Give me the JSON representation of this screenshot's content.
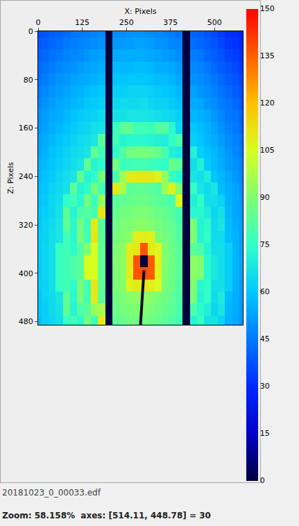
{
  "chart_data": {
    "type": "heatmap",
    "x_label": "X: Pixels",
    "y_label": "Z: Pixels",
    "xlim": [
      0,
      580
    ],
    "ylim": [
      485,
      0
    ],
    "xticks": [
      0,
      125,
      250,
      375,
      500
    ],
    "yticks": [
      0,
      80,
      160,
      240,
      320,
      400,
      480
    ],
    "x": [
      0,
      20,
      40,
      60,
      80,
      100,
      120,
      140,
      160,
      180,
      200,
      220,
      240,
      260,
      280,
      300,
      320,
      340,
      360,
      380,
      400,
      420,
      440,
      460,
      480,
      500,
      520,
      540,
      560,
      580
    ],
    "y": [
      0,
      20,
      40,
      60,
      80,
      100,
      120,
      140,
      160,
      180,
      200,
      220,
      240,
      260,
      280,
      300,
      320,
      340,
      360,
      380,
      400,
      420,
      440,
      460,
      480
    ],
    "cells": [
      [
        37,
        38,
        40,
        41,
        42,
        44,
        45,
        46,
        47,
        48,
        0,
        49,
        49,
        50,
        50,
        50,
        49,
        48,
        47,
        46,
        44,
        0,
        41,
        40,
        38,
        36,
        33,
        31,
        30,
        27
      ],
      [
        39,
        40,
        42,
        43,
        45,
        46,
        47,
        48,
        49,
        50,
        0,
        51,
        52,
        52,
        53,
        53,
        52,
        50,
        50,
        48,
        47,
        0,
        43,
        42,
        40,
        38,
        36,
        33,
        32,
        29
      ],
      [
        41,
        42,
        44,
        45,
        47,
        48,
        49,
        51,
        52,
        53,
        0,
        54,
        55,
        55,
        55,
        55,
        54,
        53,
        52,
        51,
        49,
        0,
        46,
        45,
        42,
        40,
        38,
        35,
        34,
        31
      ],
      [
        43,
        44,
        46,
        48,
        49,
        50,
        52,
        53,
        54,
        55,
        0,
        57,
        57,
        57,
        58,
        58,
        57,
        55,
        55,
        54,
        52,
        0,
        48,
        47,
        45,
        42,
        40,
        38,
        36,
        33
      ],
      [
        44,
        46,
        48,
        50,
        51,
        53,
        54,
        55,
        56,
        57,
        0,
        59,
        60,
        60,
        60,
        60,
        59,
        58,
        58,
        56,
        54,
        0,
        50,
        49,
        47,
        45,
        42,
        40,
        38,
        35
      ],
      [
        46,
        48,
        50,
        52,
        53,
        55,
        56,
        58,
        59,
        60,
        0,
        62,
        62,
        63,
        63,
        63,
        62,
        61,
        60,
        59,
        57,
        0,
        53,
        51,
        49,
        47,
        44,
        42,
        40,
        37
      ],
      [
        48,
        50,
        52,
        54,
        55,
        57,
        58,
        60,
        61,
        62,
        0,
        64,
        65,
        65,
        65,
        66,
        64,
        63,
        63,
        61,
        59,
        0,
        55,
        54,
        51,
        49,
        46,
        44,
        42,
        39
      ],
      [
        50,
        52,
        54,
        55,
        57,
        59,
        61,
        62,
        63,
        65,
        0,
        67,
        67,
        68,
        68,
        68,
        67,
        66,
        65,
        64,
        62,
        0,
        57,
        56,
        54,
        51,
        48,
        45,
        44,
        41
      ],
      [
        51,
        53,
        55,
        57,
        59,
        61,
        63,
        64,
        66,
        67,
        0,
        76,
        84,
        84,
        78,
        78,
        77,
        82,
        82,
        73,
        64,
        0,
        60,
        58,
        56,
        53,
        50,
        47,
        45,
        42
      ],
      [
        53,
        55,
        57,
        59,
        61,
        63,
        65,
        66,
        68,
        83,
        0,
        78,
        72,
        73,
        73,
        73,
        72,
        71,
        70,
        75,
        80,
        0,
        62,
        60,
        57,
        55,
        52,
        49,
        47,
        44
      ],
      [
        54,
        56,
        59,
        61,
        63,
        65,
        66,
        68,
        84,
        78,
        0,
        74,
        81,
        87,
        88,
        88,
        87,
        85,
        79,
        71,
        69,
        0,
        71,
        62,
        59,
        57,
        54,
        51,
        48,
        45
      ],
      [
        56,
        58,
        60,
        62,
        64,
        66,
        68,
        84,
        72,
        74,
        0,
        88,
        77,
        78,
        78,
        79,
        77,
        76,
        75,
        85,
        83,
        0,
        66,
        71,
        61,
        58,
        55,
        52,
        50,
        47
      ],
      [
        57,
        59,
        61,
        64,
        66,
        68,
        84,
        72,
        74,
        88,
        0,
        79,
        95,
        110,
        111,
        111,
        110,
        108,
        93,
        76,
        73,
        0,
        68,
        66,
        70,
        60,
        57,
        54,
        51,
        48
      ],
      [
        58,
        60,
        63,
        65,
        67,
        83,
        72,
        74,
        88,
        78,
        0,
        111,
        97,
        83,
        84,
        84,
        83,
        81,
        95,
        108,
        90,
        0,
        76,
        68,
        65,
        68,
        58,
        55,
        53,
        49
      ],
      [
        59,
        61,
        64,
        66,
        75,
        78,
        73,
        87,
        77,
        94,
        0,
        83,
        84,
        85,
        86,
        86,
        85,
        83,
        82,
        80,
        107,
        0,
        71,
        75,
        66,
        66,
        63,
        56,
        54,
        50
      ],
      [
        60,
        62,
        64,
        67,
        83,
        72,
        80,
        82,
        79,
        111,
        0,
        85,
        87,
        88,
        89,
        89,
        88,
        86,
        85,
        82,
        79,
        0,
        73,
        73,
        70,
        64,
        67,
        57,
        54,
        51
      ],
      [
        60,
        63,
        65,
        68,
        84,
        73,
        87,
        78,
        110,
        82,
        0,
        87,
        89,
        90,
        91,
        92,
        90,
        88,
        86,
        84,
        80,
        0,
        89,
        72,
        74,
        65,
        68,
        58,
        55,
        52
      ],
      [
        61,
        63,
        66,
        68,
        78,
        73,
        88,
        78,
        111,
        83,
        0,
        88,
        90,
        92,
        109,
        109,
        108,
        90,
        88,
        85,
        82,
        0,
        90,
        72,
        75,
        65,
        65,
        58,
        56,
        52
      ],
      [
        61,
        64,
        66,
        76,
        78,
        74,
        82,
        90,
        105,
        84,
        0,
        89,
        92,
        109,
        111,
        137,
        110,
        107,
        90,
        86,
        83,
        0,
        83,
        80,
        72,
        66,
        66,
        62,
        56,
        53
      ],
      [
        61,
        64,
        66,
        76,
        78,
        80,
        83,
        105,
        105,
        84,
        0,
        90,
        92,
        110,
        137,
        0,
        136,
        108,
        90,
        87,
        83,
        0,
        92,
        90,
        73,
        69,
        66,
        62,
        56,
        53
      ],
      [
        61,
        64,
        66,
        76,
        78,
        80,
        83,
        105,
        105,
        84,
        0,
        89,
        92,
        109,
        137,
        138,
        136,
        107,
        90,
        86,
        83,
        0,
        92,
        90,
        73,
        69,
        66,
        62,
        56,
        53
      ],
      [
        61,
        63,
        66,
        76,
        78,
        74,
        88,
        79,
        111,
        84,
        0,
        89,
        91,
        108,
        110,
        111,
        109,
        106,
        89,
        86,
        82,
        0,
        90,
        73,
        75,
        66,
        66,
        62,
        56,
        52
      ],
      [
        60,
        63,
        65,
        68,
        84,
        73,
        88,
        78,
        110,
        83,
        0,
        87,
        89,
        91,
        92,
        93,
        91,
        89,
        87,
        84,
        81,
        0,
        89,
        72,
        75,
        65,
        69,
        58,
        55,
        52
      ],
      [
        60,
        62,
        65,
        67,
        84,
        72,
        81,
        83,
        94,
        97,
        0,
        86,
        88,
        89,
        90,
        90,
        89,
        87,
        85,
        83,
        80,
        0,
        80,
        74,
        71,
        64,
        68,
        57,
        55,
        51
      ],
      [
        59,
        62,
        64,
        66,
        76,
        78,
        74,
        88,
        78,
        110,
        0,
        84,
        85,
        87,
        87,
        88,
        86,
        85,
        83,
        81,
        78,
        0,
        72,
        76,
        67,
        67,
        63,
        56,
        54,
        51
      ]
    ],
    "colorbar": {
      "lim": [
        0,
        150
      ],
      "ticks": [
        0,
        15,
        30,
        45,
        60,
        75,
        90,
        105,
        120,
        135,
        150
      ]
    },
    "beamstop_rod": {
      "x": [
        300,
        290
      ],
      "y": [
        395,
        485
      ],
      "color": "#0a0a2a"
    }
  },
  "status_bar": {
    "file": "20181023_0_00033.edf",
    "zoom": "Zoom: 58.158%  axes: [514.11, 448.78] = 30"
  }
}
